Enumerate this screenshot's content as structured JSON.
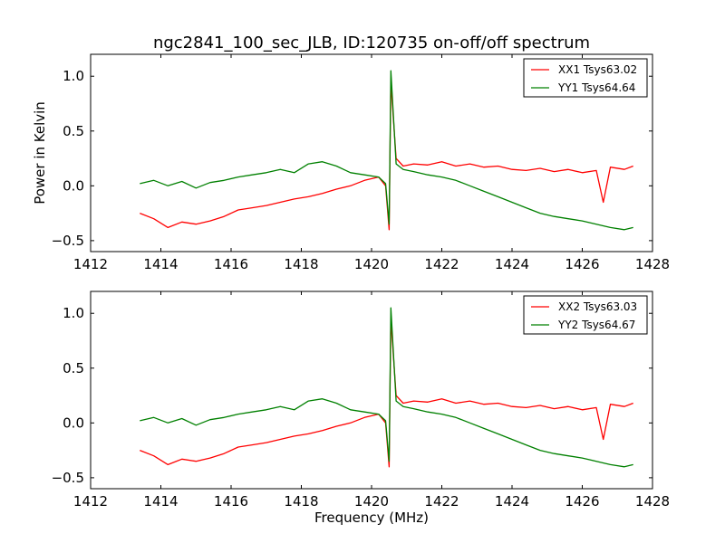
{
  "chart_data": [
    {
      "type": "line",
      "title": "ngc2841_100_sec_JLB, ID:120735 on-off/off spectrum",
      "xlabel": "",
      "ylabel": "Power in Kelvin",
      "xlim": [
        1412,
        1428
      ],
      "ylim": [
        -0.6,
        1.2
      ],
      "xticks": [
        "1412",
        "1414",
        "1416",
        "1418",
        "1420",
        "1422",
        "1424",
        "1426",
        "1428"
      ],
      "yticks": [
        "1.0",
        "0.5",
        "0.0",
        "−0.5"
      ],
      "grid": false,
      "legend_position": "top-right",
      "series": [
        {
          "name": "XX1 Tsys63.02",
          "color": "#ff0000",
          "x": [
            1413.4,
            1413.8,
            1414.2,
            1414.6,
            1415.0,
            1415.4,
            1415.8,
            1416.2,
            1416.6,
            1417.0,
            1417.4,
            1417.8,
            1418.2,
            1418.6,
            1419.0,
            1419.4,
            1419.8,
            1420.2,
            1420.4,
            1420.5,
            1420.55,
            1420.7,
            1420.9,
            1421.2,
            1421.6,
            1422.0,
            1422.4,
            1422.8,
            1423.2,
            1423.6,
            1424.0,
            1424.4,
            1424.8,
            1425.2,
            1425.6,
            1426.0,
            1426.4,
            1426.6,
            1426.8,
            1427.2,
            1427.45
          ],
          "y": [
            -0.25,
            -0.3,
            -0.38,
            -0.33,
            -0.35,
            -0.32,
            -0.28,
            -0.22,
            -0.2,
            -0.18,
            -0.15,
            -0.12,
            -0.1,
            -0.07,
            -0.03,
            0.0,
            0.05,
            0.08,
            0.0,
            -0.4,
            0.95,
            0.25,
            0.18,
            0.2,
            0.19,
            0.22,
            0.18,
            0.2,
            0.17,
            0.18,
            0.15,
            0.14,
            0.16,
            0.13,
            0.15,
            0.12,
            0.14,
            -0.15,
            0.17,
            0.15,
            0.18
          ]
        },
        {
          "name": "YY1 Tsys64.64",
          "color": "#008000",
          "x": [
            1413.4,
            1413.8,
            1414.2,
            1414.6,
            1415.0,
            1415.4,
            1415.8,
            1416.2,
            1416.6,
            1417.0,
            1417.4,
            1417.8,
            1418.2,
            1418.6,
            1419.0,
            1419.4,
            1419.8,
            1420.2,
            1420.4,
            1420.5,
            1420.55,
            1420.7,
            1420.9,
            1421.2,
            1421.6,
            1422.0,
            1422.4,
            1422.8,
            1423.2,
            1423.6,
            1424.0,
            1424.4,
            1424.8,
            1425.2,
            1425.6,
            1426.0,
            1426.4,
            1426.8,
            1427.2,
            1427.45
          ],
          "y": [
            0.02,
            0.05,
            0.0,
            0.04,
            -0.02,
            0.03,
            0.05,
            0.08,
            0.1,
            0.12,
            0.15,
            0.12,
            0.2,
            0.22,
            0.18,
            0.12,
            0.1,
            0.08,
            0.02,
            -0.35,
            1.05,
            0.2,
            0.15,
            0.13,
            0.1,
            0.08,
            0.05,
            0.0,
            -0.05,
            -0.1,
            -0.15,
            -0.2,
            -0.25,
            -0.28,
            -0.3,
            -0.32,
            -0.35,
            -0.38,
            -0.4,
            -0.38
          ]
        }
      ]
    },
    {
      "type": "line",
      "title": "",
      "xlabel": "Frequency (MHz)",
      "ylabel": "",
      "xlim": [
        1412,
        1428
      ],
      "ylim": [
        -0.6,
        1.2
      ],
      "xticks": [
        "1412",
        "1414",
        "1416",
        "1418",
        "1420",
        "1422",
        "1424",
        "1426",
        "1428"
      ],
      "yticks": [
        "1.0",
        "0.5",
        "0.0",
        "−0.5"
      ],
      "grid": false,
      "legend_position": "top-right",
      "series": [
        {
          "name": "XX2 Tsys63.03",
          "color": "#ff0000",
          "x": [
            1413.4,
            1413.8,
            1414.2,
            1414.6,
            1415.0,
            1415.4,
            1415.8,
            1416.2,
            1416.6,
            1417.0,
            1417.4,
            1417.8,
            1418.2,
            1418.6,
            1419.0,
            1419.4,
            1419.8,
            1420.2,
            1420.4,
            1420.5,
            1420.55,
            1420.7,
            1420.9,
            1421.2,
            1421.6,
            1422.0,
            1422.4,
            1422.8,
            1423.2,
            1423.6,
            1424.0,
            1424.4,
            1424.8,
            1425.2,
            1425.6,
            1426.0,
            1426.4,
            1426.6,
            1426.8,
            1427.2,
            1427.45
          ],
          "y": [
            -0.25,
            -0.3,
            -0.38,
            -0.33,
            -0.35,
            -0.32,
            -0.28,
            -0.22,
            -0.2,
            -0.18,
            -0.15,
            -0.12,
            -0.1,
            -0.07,
            -0.03,
            0.0,
            0.05,
            0.08,
            0.0,
            -0.4,
            0.95,
            0.25,
            0.18,
            0.2,
            0.19,
            0.22,
            0.18,
            0.2,
            0.17,
            0.18,
            0.15,
            0.14,
            0.16,
            0.13,
            0.15,
            0.12,
            0.14,
            -0.15,
            0.17,
            0.15,
            0.18
          ]
        },
        {
          "name": "YY2 Tsys64.67",
          "color": "#008000",
          "x": [
            1413.4,
            1413.8,
            1414.2,
            1414.6,
            1415.0,
            1415.4,
            1415.8,
            1416.2,
            1416.6,
            1417.0,
            1417.4,
            1417.8,
            1418.2,
            1418.6,
            1419.0,
            1419.4,
            1419.8,
            1420.2,
            1420.4,
            1420.5,
            1420.55,
            1420.7,
            1420.9,
            1421.2,
            1421.6,
            1422.0,
            1422.4,
            1422.8,
            1423.2,
            1423.6,
            1424.0,
            1424.4,
            1424.8,
            1425.2,
            1425.6,
            1426.0,
            1426.4,
            1426.8,
            1427.2,
            1427.45
          ],
          "y": [
            0.02,
            0.05,
            0.0,
            0.04,
            -0.02,
            0.03,
            0.05,
            0.08,
            0.1,
            0.12,
            0.15,
            0.12,
            0.2,
            0.22,
            0.18,
            0.12,
            0.1,
            0.08,
            0.02,
            -0.35,
            1.05,
            0.2,
            0.15,
            0.13,
            0.1,
            0.08,
            0.05,
            0.0,
            -0.05,
            -0.1,
            -0.15,
            -0.2,
            -0.25,
            -0.28,
            -0.3,
            -0.32,
            -0.35,
            -0.38,
            -0.4,
            -0.38
          ]
        }
      ]
    }
  ]
}
